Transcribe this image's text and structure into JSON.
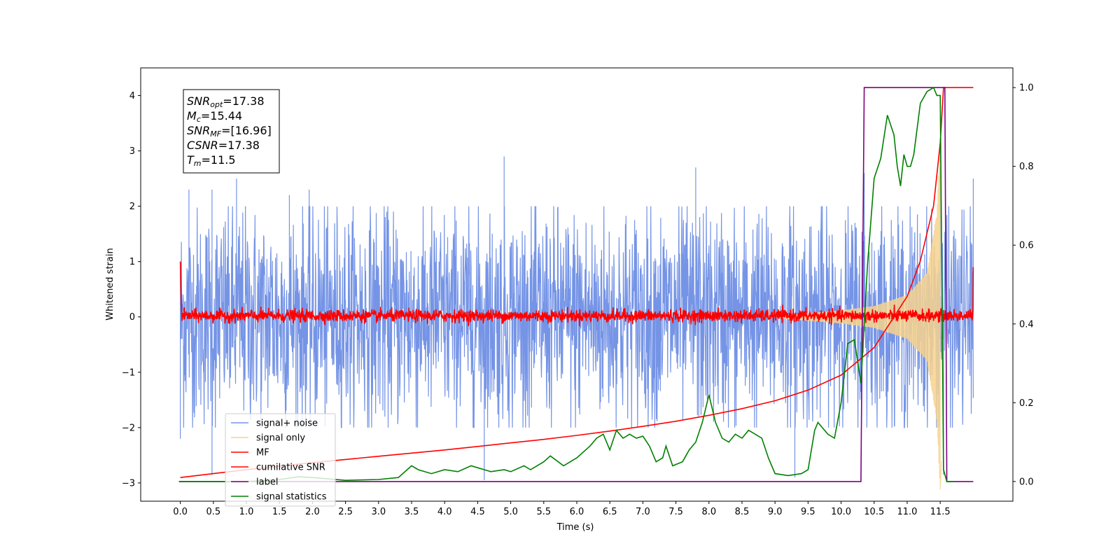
{
  "chart_data": {
    "type": "line",
    "xlabel": "Time (s)",
    "ylabel": "Whitened strain",
    "xlim": [
      -0.6,
      12.6
    ],
    "ylim": [
      -3.33,
      4.5
    ],
    "y2lim": [
      -0.05,
      1.05
    ],
    "x_ticks": [
      "0.0",
      "0.5",
      "1.0",
      "1.5",
      "2.0",
      "2.5",
      "3.0",
      "3.5",
      "4.0",
      "4.5",
      "5.0",
      "5.5",
      "6.0",
      "6.5",
      "7.0",
      "7.5",
      "8.0",
      "8.5",
      "9.0",
      "9.5",
      "10.0",
      "10.5",
      "11.0",
      "11.5"
    ],
    "y_ticks": [
      "−3",
      "−2",
      "−1",
      "0",
      "1",
      "2",
      "3",
      "4"
    ],
    "y2_ticks": [
      "0.0",
      "0.2",
      "0.4",
      "0.6",
      "0.8",
      "1.0"
    ],
    "annotation": [
      {
        "main": "SNR",
        "sub": "opt",
        "rest": "=17.38"
      },
      {
        "main": "M",
        "sub": "c",
        "rest": "=15.44"
      },
      {
        "main": "SNR",
        "sub": "MF",
        "rest": "=[16.96]"
      },
      {
        "main": "CSNR",
        "sub": "",
        "rest": "=17.38"
      },
      {
        "main": "T",
        "sub": "m",
        "rest": "=11.5"
      }
    ],
    "legend": [
      {
        "name": "signal+ noise",
        "color": "#7594e6"
      },
      {
        "name": "signal only",
        "color": "#f7d28d"
      },
      {
        "name": "MF",
        "color": "#ff0000"
      },
      {
        "name": "cumilative SNR",
        "color": "#ff0000"
      },
      {
        "name": "label",
        "color": "#800080"
      },
      {
        "name": "signal statistics",
        "color": "#008000"
      }
    ],
    "legend_position": "lower-left",
    "series": [
      {
        "name": "signal+ noise",
        "axis": "left",
        "color": "#7594e6",
        "style": "noise-band",
        "x_range": [
          0,
          12.0
        ],
        "typical_abs": 1.3,
        "peaks": [
          [
            0.0,
            1.0
          ],
          [
            0.13,
            2.3
          ],
          [
            0.48,
            2.3
          ],
          [
            0.85,
            2.5
          ],
          [
            1.65,
            2.2
          ],
          [
            1.95,
            2.3
          ],
          [
            4.9,
            2.9
          ],
          [
            7.8,
            2.7
          ],
          [
            10.35,
            2.6
          ],
          [
            11.5,
            3.2
          ],
          [
            12.0,
            2.5
          ]
        ],
        "troughs": [
          [
            0.0,
            -2.2
          ],
          [
            0.48,
            -2.85
          ],
          [
            4.6,
            -2.95
          ],
          [
            9.3,
            -2.9
          ],
          [
            11.55,
            -2.85
          ]
        ]
      },
      {
        "name": "signal only",
        "axis": "left",
        "color": "#f7d28d",
        "style": "chirp-envelope",
        "envelope": [
          [
            9.0,
            0.02
          ],
          [
            10.0,
            0.12
          ],
          [
            10.5,
            0.2
          ],
          [
            11.0,
            0.4
          ],
          [
            11.3,
            0.8
          ],
          [
            11.45,
            1.9
          ],
          [
            11.5,
            3.2
          ],
          [
            11.52,
            -2.6
          ]
        ]
      },
      {
        "name": "MF",
        "axis": "left",
        "color": "#ff0000",
        "style": "noise-band",
        "x_range": [
          0,
          12.0
        ],
        "typical_abs": 0.08,
        "start_value": 1.0,
        "end_value": 0.9
      },
      {
        "name": "cumilative SNR",
        "axis": "right",
        "color": "#ff0000",
        "x": [
          0.0,
          0.5,
          1.0,
          1.5,
          2.0,
          2.5,
          3.0,
          3.5,
          4.0,
          4.5,
          5.0,
          5.5,
          6.0,
          6.5,
          7.0,
          7.5,
          8.0,
          8.5,
          9.0,
          9.5,
          10.0,
          10.5,
          11.0,
          11.2,
          11.4,
          11.5,
          11.55,
          12.0
        ],
        "values": [
          0.01,
          0.02,
          0.03,
          0.039,
          0.048,
          0.056,
          0.064,
          0.072,
          0.08,
          0.089,
          0.098,
          0.107,
          0.117,
          0.128,
          0.14,
          0.153,
          0.168,
          0.185,
          0.205,
          0.232,
          0.27,
          0.34,
          0.47,
          0.56,
          0.7,
          0.86,
          1.0,
          1.0
        ]
      },
      {
        "name": "label",
        "axis": "right",
        "color": "#800080",
        "x": [
          -0.02,
          10.3,
          10.35,
          11.57,
          11.6,
          12.0
        ],
        "values": [
          0.0,
          0.0,
          1.0,
          1.0,
          0.0,
          0.0
        ]
      },
      {
        "name": "signal statistics",
        "axis": "right",
        "color": "#008000",
        "x": [
          -0.02,
          1.0,
          1.5,
          1.8,
          2.0,
          2.5,
          3.0,
          3.3,
          3.5,
          3.6,
          3.8,
          4.0,
          4.2,
          4.4,
          4.5,
          4.6,
          4.7,
          4.9,
          5.0,
          5.2,
          5.3,
          5.5,
          5.6,
          5.8,
          6.0,
          6.2,
          6.3,
          6.4,
          6.5,
          6.6,
          6.7,
          6.8,
          6.9,
          7.0,
          7.1,
          7.2,
          7.3,
          7.35,
          7.45,
          7.6,
          7.7,
          7.8,
          7.9,
          8.0,
          8.1,
          8.2,
          8.3,
          8.4,
          8.5,
          8.6,
          8.7,
          8.8,
          8.9,
          9.0,
          9.2,
          9.4,
          9.5,
          9.6,
          9.65,
          9.8,
          9.9,
          10.0,
          10.1,
          10.2,
          10.3,
          10.4,
          10.5,
          10.6,
          10.7,
          10.8,
          10.85,
          10.9,
          10.95,
          11.0,
          11.05,
          11.1,
          11.2,
          11.3,
          11.4,
          11.45,
          11.5,
          11.55,
          11.6,
          11.7
        ],
        "values": [
          0.0,
          0.0,
          0.005,
          0.012,
          0.01,
          0.003,
          0.005,
          0.01,
          0.04,
          0.03,
          0.02,
          0.03,
          0.025,
          0.04,
          0.035,
          0.03,
          0.025,
          0.03,
          0.025,
          0.04,
          0.03,
          0.05,
          0.065,
          0.04,
          0.06,
          0.09,
          0.11,
          0.12,
          0.08,
          0.13,
          0.11,
          0.12,
          0.11,
          0.115,
          0.09,
          0.05,
          0.06,
          0.09,
          0.04,
          0.05,
          0.08,
          0.1,
          0.15,
          0.22,
          0.15,
          0.11,
          0.1,
          0.12,
          0.11,
          0.13,
          0.12,
          0.11,
          0.06,
          0.02,
          0.015,
          0.02,
          0.03,
          0.13,
          0.15,
          0.12,
          0.11,
          0.2,
          0.35,
          0.36,
          0.25,
          0.55,
          0.77,
          0.82,
          0.93,
          0.88,
          0.8,
          0.75,
          0.83,
          0.8,
          0.8,
          0.83,
          0.96,
          0.99,
          1.0,
          0.98,
          0.98,
          0.03,
          0.0,
          0.0
        ]
      }
    ]
  }
}
